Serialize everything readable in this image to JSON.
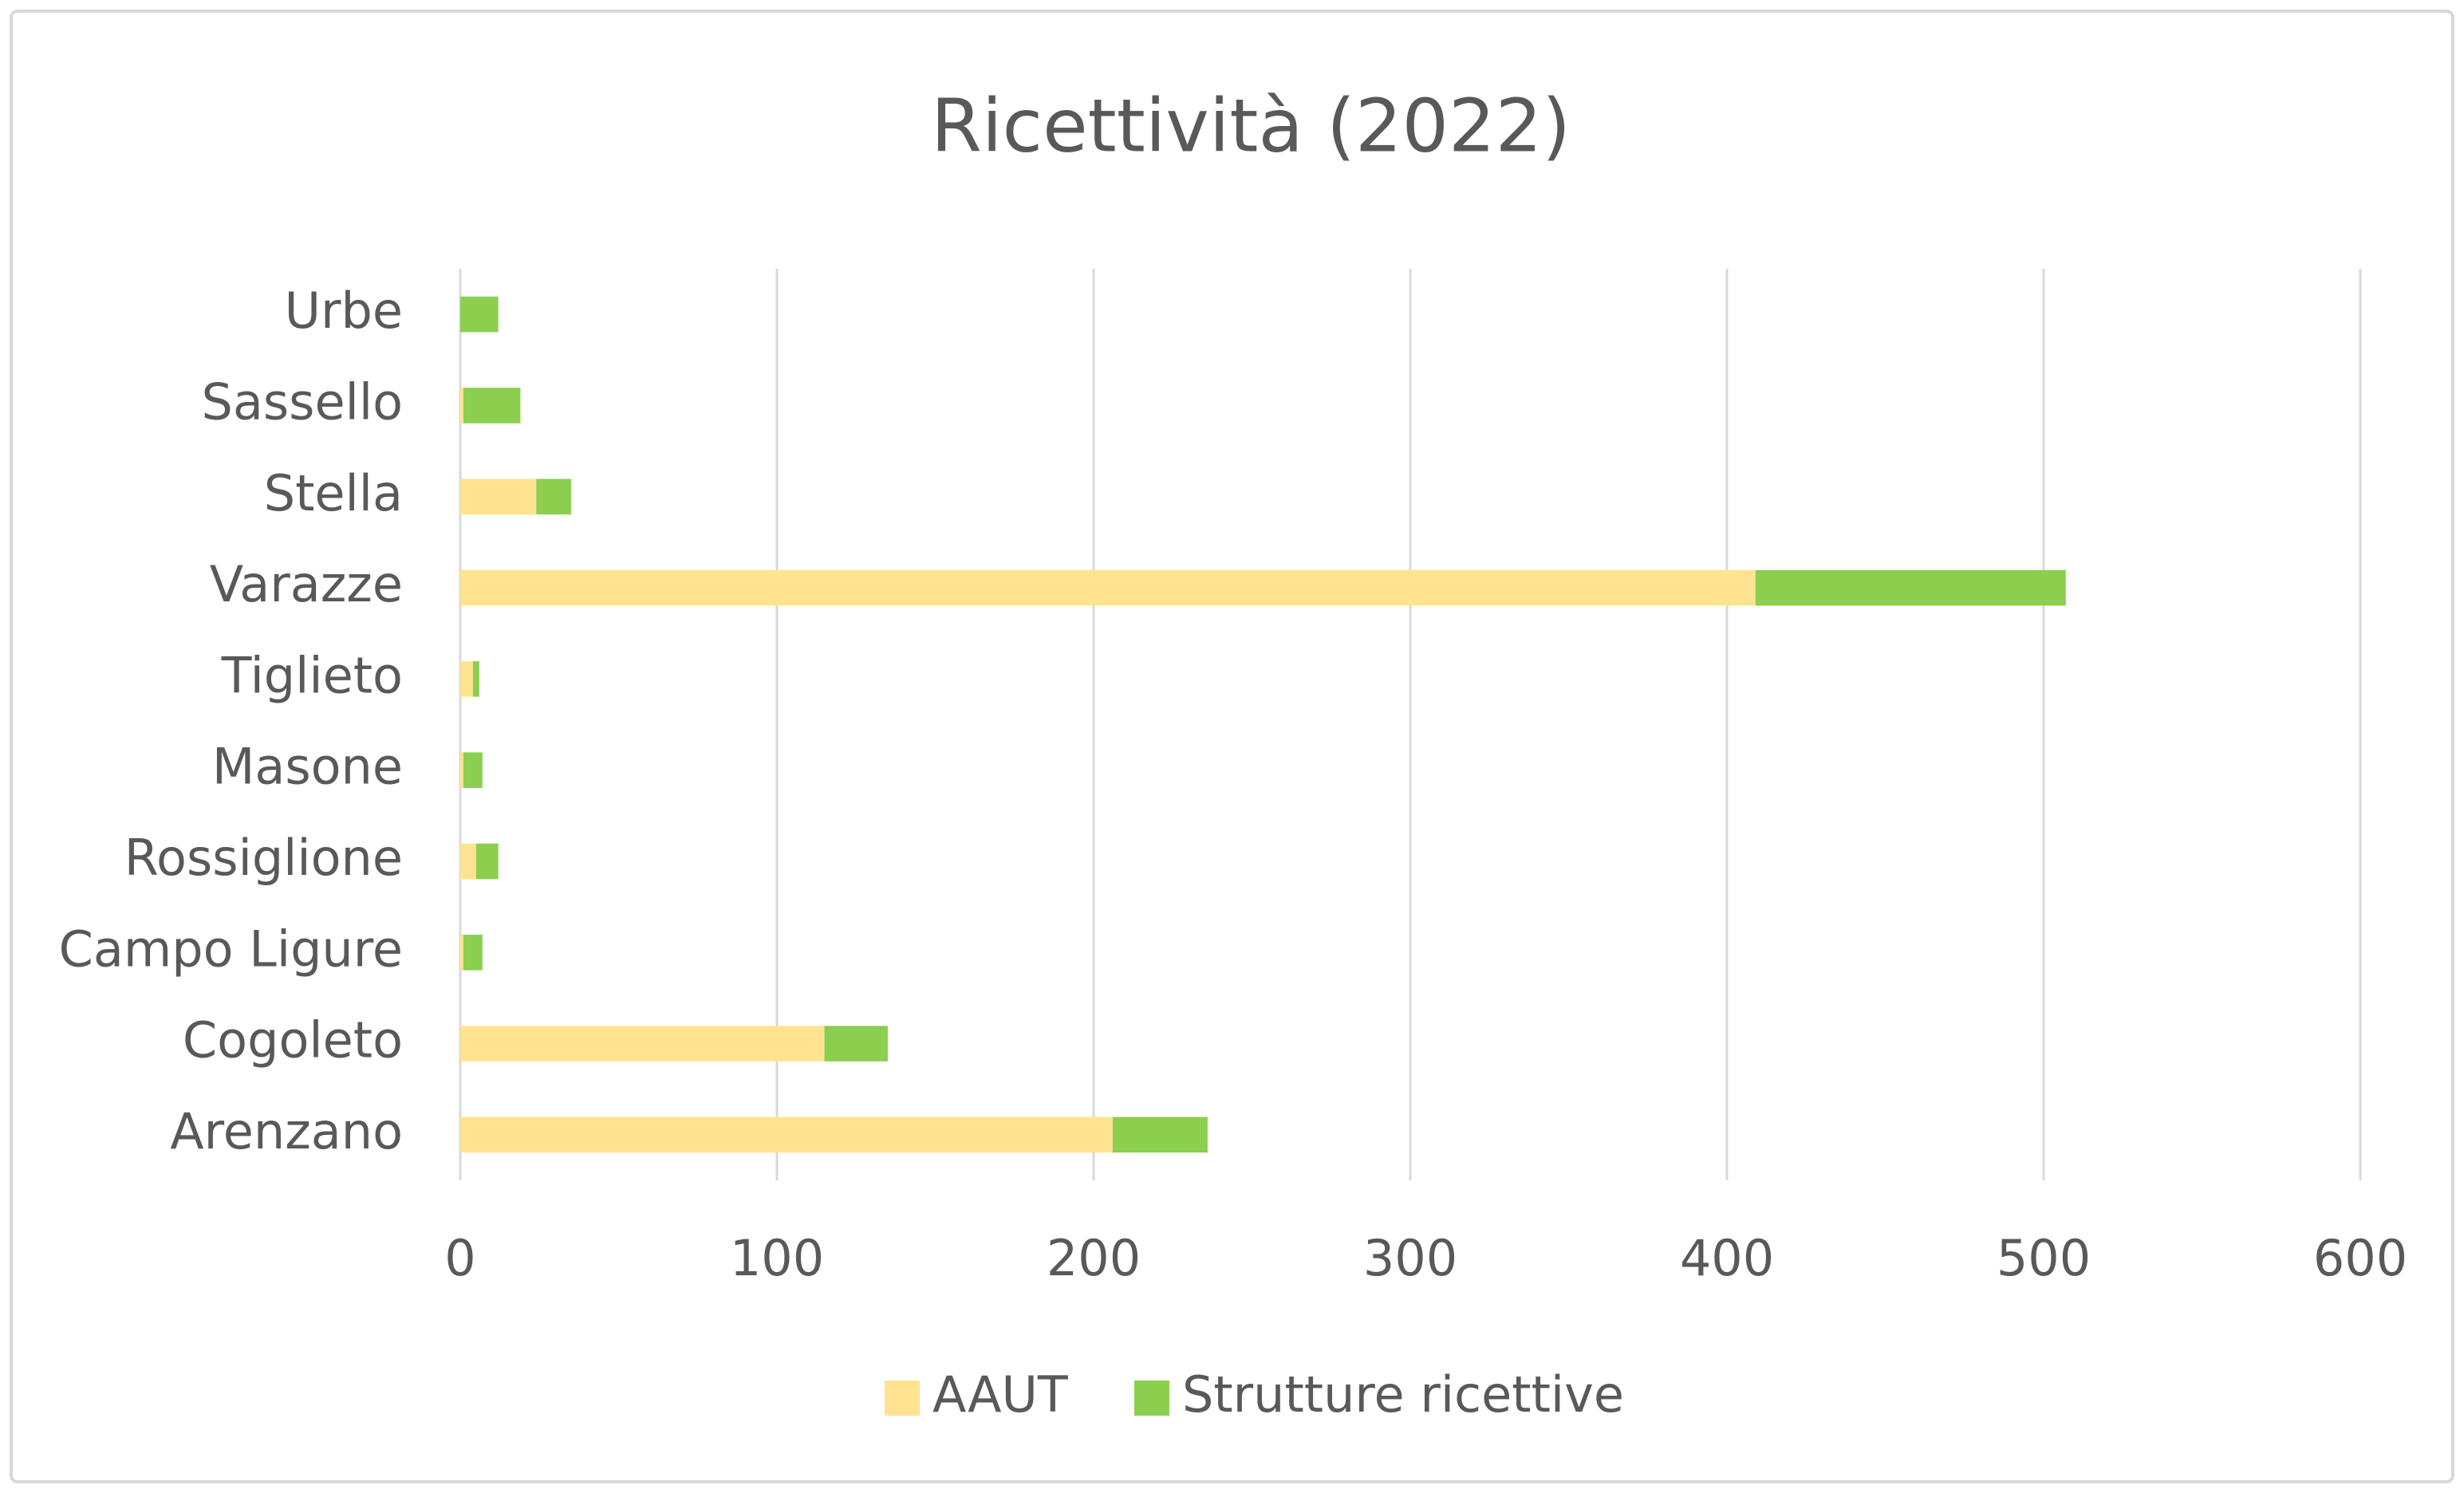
{
  "chart_data": {
    "type": "stacked_bar_horizontal",
    "title": "Ricettività (2022)",
    "categories": [
      "Arenzano",
      "Cogoleto",
      "Campo Ligure",
      "Rossiglione",
      "Masone",
      "Tiglieto",
      "Varazze",
      "Stella",
      "Sassello",
      "Urbe"
    ],
    "series": [
      {
        "name": "AAUT",
        "color": "#ffe391",
        "values": [
          206,
          115,
          1,
          5,
          1,
          4,
          409,
          24,
          1,
          0
        ]
      },
      {
        "name": "Strutture ricettive",
        "color": "#8cce4e",
        "values": [
          30,
          20,
          6,
          7,
          6,
          2,
          98,
          11,
          18,
          12
        ]
      }
    ],
    "xlim": [
      0,
      600
    ],
    "xticks": [
      0,
      100,
      200,
      300,
      400,
      500,
      600
    ],
    "grid": true,
    "legend": "bottom"
  }
}
